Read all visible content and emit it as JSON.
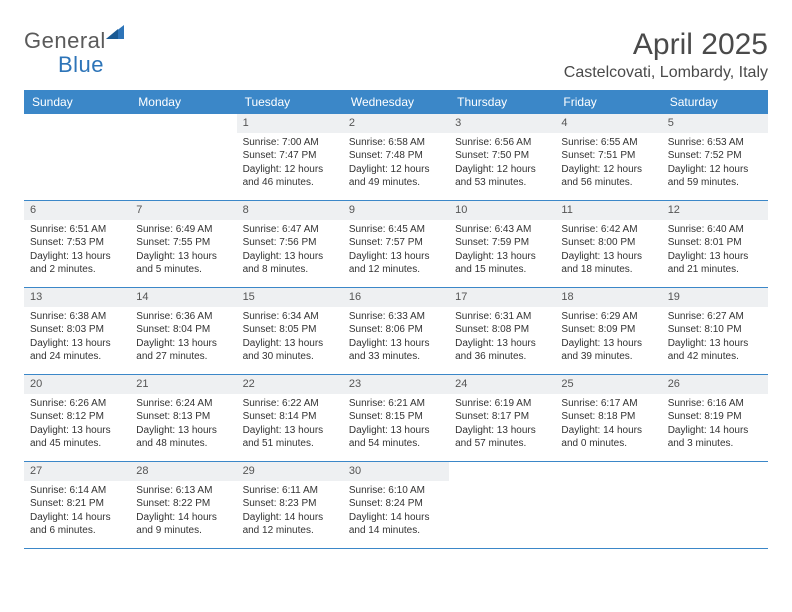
{
  "logo": {
    "text1": "General",
    "text2": "Blue"
  },
  "title": "April 2025",
  "location": "Castelcovati, Lombardy, Italy",
  "colors": {
    "header_bg": "#3b87c8",
    "header_text": "#ffffff",
    "daynum_bg": "#eef0f2",
    "row_border": "#3b87c8",
    "body_text": "#333333",
    "title_text": "#4a4a4a",
    "logo_gray": "#5a5a5a",
    "logo_blue": "#2d74b8"
  },
  "dayNames": [
    "Sunday",
    "Monday",
    "Tuesday",
    "Wednesday",
    "Thursday",
    "Friday",
    "Saturday"
  ],
  "weeks": [
    [
      {
        "n": "",
        "sr": "",
        "ss": "",
        "dl": ""
      },
      {
        "n": "",
        "sr": "",
        "ss": "",
        "dl": ""
      },
      {
        "n": "1",
        "sr": "Sunrise: 7:00 AM",
        "ss": "Sunset: 7:47 PM",
        "dl": "Daylight: 12 hours and 46 minutes."
      },
      {
        "n": "2",
        "sr": "Sunrise: 6:58 AM",
        "ss": "Sunset: 7:48 PM",
        "dl": "Daylight: 12 hours and 49 minutes."
      },
      {
        "n": "3",
        "sr": "Sunrise: 6:56 AM",
        "ss": "Sunset: 7:50 PM",
        "dl": "Daylight: 12 hours and 53 minutes."
      },
      {
        "n": "4",
        "sr": "Sunrise: 6:55 AM",
        "ss": "Sunset: 7:51 PM",
        "dl": "Daylight: 12 hours and 56 minutes."
      },
      {
        "n": "5",
        "sr": "Sunrise: 6:53 AM",
        "ss": "Sunset: 7:52 PM",
        "dl": "Daylight: 12 hours and 59 minutes."
      }
    ],
    [
      {
        "n": "6",
        "sr": "Sunrise: 6:51 AM",
        "ss": "Sunset: 7:53 PM",
        "dl": "Daylight: 13 hours and 2 minutes."
      },
      {
        "n": "7",
        "sr": "Sunrise: 6:49 AM",
        "ss": "Sunset: 7:55 PM",
        "dl": "Daylight: 13 hours and 5 minutes."
      },
      {
        "n": "8",
        "sr": "Sunrise: 6:47 AM",
        "ss": "Sunset: 7:56 PM",
        "dl": "Daylight: 13 hours and 8 minutes."
      },
      {
        "n": "9",
        "sr": "Sunrise: 6:45 AM",
        "ss": "Sunset: 7:57 PM",
        "dl": "Daylight: 13 hours and 12 minutes."
      },
      {
        "n": "10",
        "sr": "Sunrise: 6:43 AM",
        "ss": "Sunset: 7:59 PM",
        "dl": "Daylight: 13 hours and 15 minutes."
      },
      {
        "n": "11",
        "sr": "Sunrise: 6:42 AM",
        "ss": "Sunset: 8:00 PM",
        "dl": "Daylight: 13 hours and 18 minutes."
      },
      {
        "n": "12",
        "sr": "Sunrise: 6:40 AM",
        "ss": "Sunset: 8:01 PM",
        "dl": "Daylight: 13 hours and 21 minutes."
      }
    ],
    [
      {
        "n": "13",
        "sr": "Sunrise: 6:38 AM",
        "ss": "Sunset: 8:03 PM",
        "dl": "Daylight: 13 hours and 24 minutes."
      },
      {
        "n": "14",
        "sr": "Sunrise: 6:36 AM",
        "ss": "Sunset: 8:04 PM",
        "dl": "Daylight: 13 hours and 27 minutes."
      },
      {
        "n": "15",
        "sr": "Sunrise: 6:34 AM",
        "ss": "Sunset: 8:05 PM",
        "dl": "Daylight: 13 hours and 30 minutes."
      },
      {
        "n": "16",
        "sr": "Sunrise: 6:33 AM",
        "ss": "Sunset: 8:06 PM",
        "dl": "Daylight: 13 hours and 33 minutes."
      },
      {
        "n": "17",
        "sr": "Sunrise: 6:31 AM",
        "ss": "Sunset: 8:08 PM",
        "dl": "Daylight: 13 hours and 36 minutes."
      },
      {
        "n": "18",
        "sr": "Sunrise: 6:29 AM",
        "ss": "Sunset: 8:09 PM",
        "dl": "Daylight: 13 hours and 39 minutes."
      },
      {
        "n": "19",
        "sr": "Sunrise: 6:27 AM",
        "ss": "Sunset: 8:10 PM",
        "dl": "Daylight: 13 hours and 42 minutes."
      }
    ],
    [
      {
        "n": "20",
        "sr": "Sunrise: 6:26 AM",
        "ss": "Sunset: 8:12 PM",
        "dl": "Daylight: 13 hours and 45 minutes."
      },
      {
        "n": "21",
        "sr": "Sunrise: 6:24 AM",
        "ss": "Sunset: 8:13 PM",
        "dl": "Daylight: 13 hours and 48 minutes."
      },
      {
        "n": "22",
        "sr": "Sunrise: 6:22 AM",
        "ss": "Sunset: 8:14 PM",
        "dl": "Daylight: 13 hours and 51 minutes."
      },
      {
        "n": "23",
        "sr": "Sunrise: 6:21 AM",
        "ss": "Sunset: 8:15 PM",
        "dl": "Daylight: 13 hours and 54 minutes."
      },
      {
        "n": "24",
        "sr": "Sunrise: 6:19 AM",
        "ss": "Sunset: 8:17 PM",
        "dl": "Daylight: 13 hours and 57 minutes."
      },
      {
        "n": "25",
        "sr": "Sunrise: 6:17 AM",
        "ss": "Sunset: 8:18 PM",
        "dl": "Daylight: 14 hours and 0 minutes."
      },
      {
        "n": "26",
        "sr": "Sunrise: 6:16 AM",
        "ss": "Sunset: 8:19 PM",
        "dl": "Daylight: 14 hours and 3 minutes."
      }
    ],
    [
      {
        "n": "27",
        "sr": "Sunrise: 6:14 AM",
        "ss": "Sunset: 8:21 PM",
        "dl": "Daylight: 14 hours and 6 minutes."
      },
      {
        "n": "28",
        "sr": "Sunrise: 6:13 AM",
        "ss": "Sunset: 8:22 PM",
        "dl": "Daylight: 14 hours and 9 minutes."
      },
      {
        "n": "29",
        "sr": "Sunrise: 6:11 AM",
        "ss": "Sunset: 8:23 PM",
        "dl": "Daylight: 14 hours and 12 minutes."
      },
      {
        "n": "30",
        "sr": "Sunrise: 6:10 AM",
        "ss": "Sunset: 8:24 PM",
        "dl": "Daylight: 14 hours and 14 minutes."
      },
      {
        "n": "",
        "sr": "",
        "ss": "",
        "dl": ""
      },
      {
        "n": "",
        "sr": "",
        "ss": "",
        "dl": ""
      },
      {
        "n": "",
        "sr": "",
        "ss": "",
        "dl": ""
      }
    ]
  ]
}
